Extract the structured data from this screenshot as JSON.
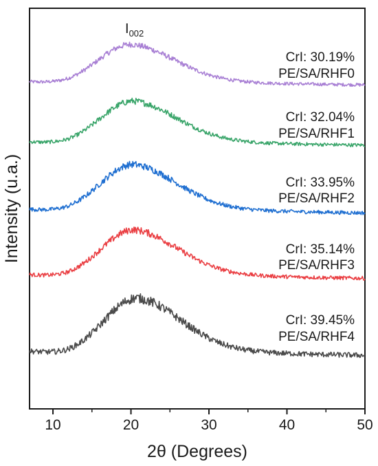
{
  "chart_data": {
    "type": "line",
    "title": "",
    "xlabel": "2θ (Degrees)",
    "ylabel": "Intensity (u.a.)",
    "xlim": [
      7,
      50
    ],
    "xticks": [
      "10",
      "20",
      "30",
      "40",
      "50"
    ],
    "yticks": "none",
    "grid": false,
    "legend": "labels beside each curve, right side",
    "annotation": {
      "main": "I",
      "sub": "002",
      "x": 19.8
    },
    "series": [
      {
        "name": "PE/SA/RHF0",
        "crystallinity": "CrI: 30.19%",
        "color": "#a87fd4",
        "peak_x": 20.0,
        "noise_level": 0.06
      },
      {
        "name": "PE/SA/RHF1",
        "crystallinity": "CrI: 32.04%",
        "color": "#3aa56a",
        "peak_x": 20.3,
        "noise_level": 0.06
      },
      {
        "name": "PE/SA/RHF2",
        "crystallinity": "CrI: 33.95%",
        "color": "#1f6fd1",
        "peak_x": 20.3,
        "noise_level": 0.06
      },
      {
        "name": "PE/SA/RHF3",
        "crystallinity": "CrI: 35.14%",
        "color": "#ea3f43",
        "peak_x": 20.4,
        "noise_level": 0.06
      },
      {
        "name": "PE/SA/RHF4",
        "crystallinity": "CrI: 39.45%",
        "color": "#4a4a4a",
        "peak_x": 20.8,
        "noise_level": 0.07
      }
    ]
  }
}
